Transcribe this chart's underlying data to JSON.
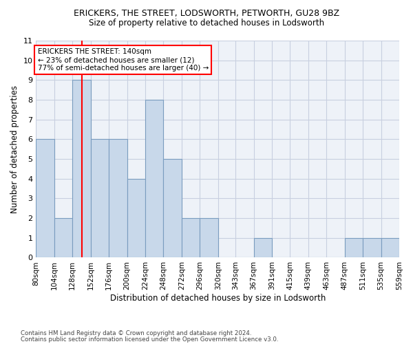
{
  "title1": "ERICKERS, THE STREET, LODSWORTH, PETWORTH, GU28 9BZ",
  "title2": "Size of property relative to detached houses in Lodsworth",
  "xlabel": "Distribution of detached houses by size in Lodsworth",
  "ylabel": "Number of detached properties",
  "bar_values": [
    6,
    2,
    9,
    6,
    6,
    4,
    8,
    5,
    2,
    2,
    0,
    0,
    1,
    0,
    0,
    0,
    0,
    1,
    1,
    1
  ],
  "bin_labels": [
    "80sqm",
    "104sqm",
    "128sqm",
    "152sqm",
    "176sqm",
    "200sqm",
    "224sqm",
    "248sqm",
    "272sqm",
    "296sqm",
    "320sqm",
    "343sqm",
    "367sqm",
    "391sqm",
    "415sqm",
    "439sqm",
    "463sqm",
    "487sqm",
    "511sqm",
    "535sqm",
    "559sqm"
  ],
  "bin_edges": [
    80,
    104,
    128,
    152,
    176,
    200,
    224,
    248,
    272,
    296,
    320,
    343,
    367,
    391,
    415,
    439,
    463,
    487,
    511,
    535,
    559
  ],
  "bar_color": "#c8d8ea",
  "bar_edge_color": "#7a9cbf",
  "grid_color": "#c8cfe0",
  "ref_line_x": 140,
  "ref_line_color": "red",
  "annotation_title": "ERICKERS THE STREET: 140sqm",
  "annotation_line1": "← 23% of detached houses are smaller (12)",
  "annotation_line2": "77% of semi-detached houses are larger (40) →",
  "footer1": "Contains HM Land Registry data © Crown copyright and database right 2024.",
  "footer2": "Contains public sector information licensed under the Open Government Licence v3.0.",
  "ylim": [
    0,
    11
  ],
  "yticks": [
    0,
    1,
    2,
    3,
    4,
    5,
    6,
    7,
    8,
    9,
    10,
    11
  ],
  "background_color": "#eef2f8"
}
